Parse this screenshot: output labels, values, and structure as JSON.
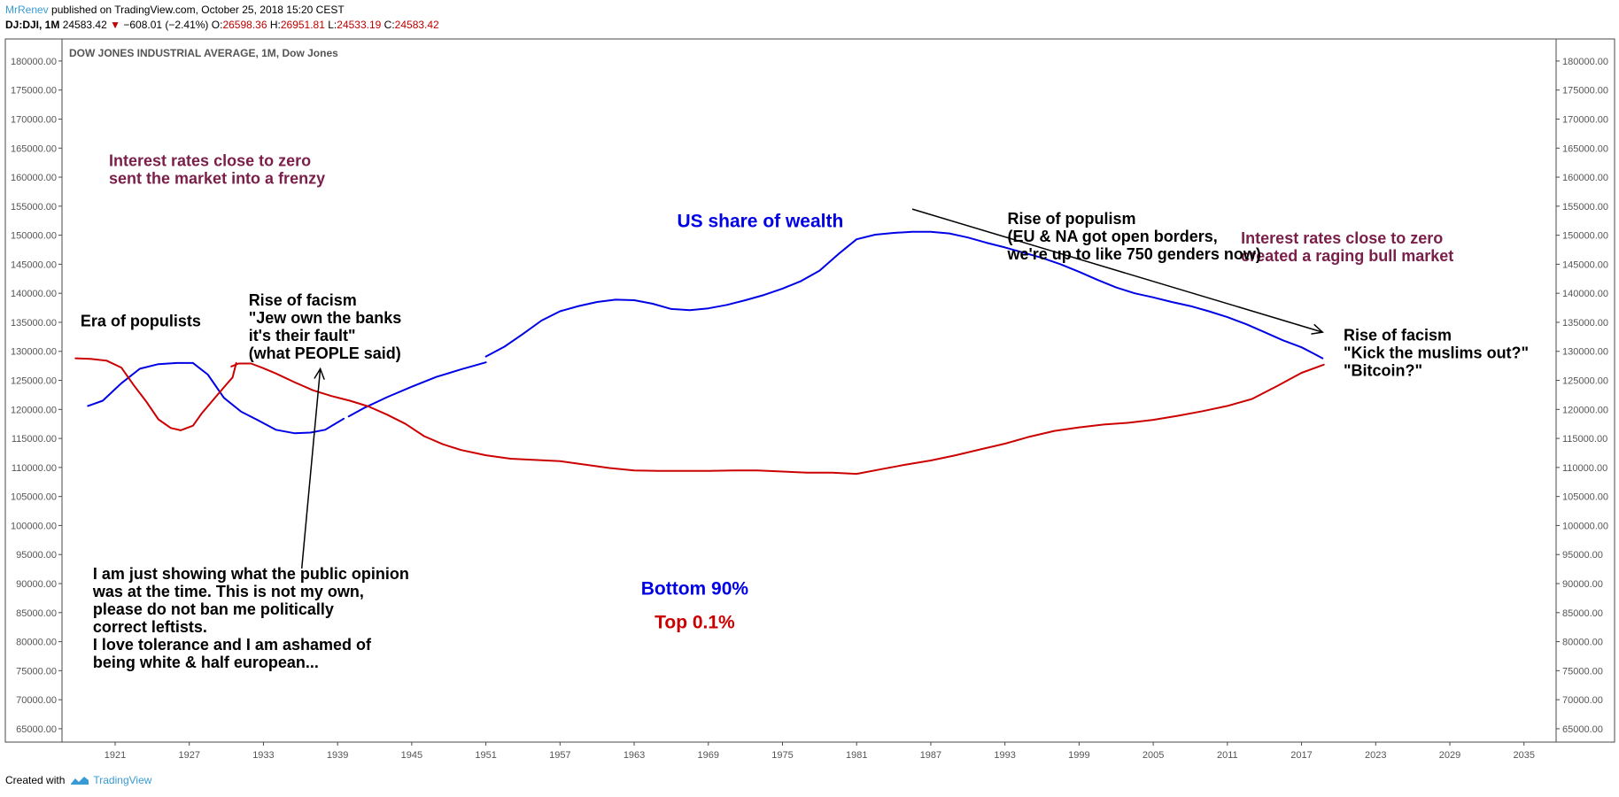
{
  "header": {
    "user": "MrRenev",
    "published": " published on TradingView.com, October 25, 2018 15:20 CEST",
    "symbol": "DJ:DJI, 1M",
    "last": "24583.42",
    "down_arrow": "▼",
    "change": "−608.01 (−2.41%)",
    "o_label": "O:",
    "o_value": "26598.36",
    "h_label": "H:",
    "h_value": "26951.81",
    "l_label": "L:",
    "l_value": "24533.19",
    "c_label": "C:",
    "c_value": "24583.42"
  },
  "footer": {
    "created_with": "Created with",
    "brand": "TradingView"
  },
  "colors": {
    "blue": "#0000e6",
    "red": "#cc0000",
    "purple": "#7a1f4a",
    "axis": "#555555",
    "brand": "#3a9bd4"
  },
  "chart_data": {
    "type": "line",
    "title": "DOW JONES INDUSTRIAL AVERAGE, 1M, Dow Jones",
    "xlim": [
      1916.7,
      2037.6
    ],
    "ylim": [
      62700,
      183800
    ],
    "x_ticks": [
      "1921",
      "1927",
      "1933",
      "1939",
      "1945",
      "1951",
      "1957",
      "1963",
      "1969",
      "1975",
      "1981",
      "1987",
      "1993",
      "1999",
      "2005",
      "2011",
      "2017",
      "2023",
      "2029",
      "2035"
    ],
    "y_ticks": [
      "180000.00",
      "175000.00",
      "170000.00",
      "165000.00",
      "160000.00",
      "155000.00",
      "150000.00",
      "145000.00",
      "140000.00",
      "135000.00",
      "130000.00",
      "125000.00",
      "120000.00",
      "115000.00",
      "110000.00",
      "105000.00",
      "100000.00",
      "95000.00",
      "90000.00",
      "85000.00",
      "80000.00",
      "75000.00",
      "70000.00",
      "65000.00"
    ],
    "series": [
      {
        "name": "Bottom 90%",
        "color": "#0000e6",
        "segments": [
          [
            [
              1918.8,
              120600
            ],
            [
              1920,
              121500
            ],
            [
              1921.5,
              124500
            ],
            [
              1923,
              127000
            ],
            [
              1924.5,
              127800
            ],
            [
              1926,
              128000
            ],
            [
              1927.3,
              128000
            ],
            [
              1928.5,
              126000
            ],
            [
              1929.8,
              122000
            ],
            [
              1931.2,
              119600
            ],
            [
              1932.5,
              118200
            ],
            [
              1934,
              116500
            ],
            [
              1935.5,
              115900
            ],
            [
              1936.8,
              116000
            ],
            [
              1938,
              116500
            ],
            [
              1939.5,
              118400
            ]
          ],
          [
            [
              1939.9,
              118800
            ],
            [
              1941.2,
              120300
            ],
            [
              1943,
              122100
            ],
            [
              1945,
              123900
            ],
            [
              1947,
              125600
            ],
            [
              1949,
              126900
            ],
            [
              1951,
              128100
            ]
          ],
          [
            [
              1951,
              129100
            ],
            [
              1952.5,
              130800
            ],
            [
              1954,
              133000
            ],
            [
              1955.5,
              135300
            ],
            [
              1957,
              136900
            ],
            [
              1958.5,
              137800
            ],
            [
              1960,
              138500
            ],
            [
              1961.5,
              138900
            ],
            [
              1963,
              138800
            ],
            [
              1964.5,
              138200
            ],
            [
              1966,
              137300
            ],
            [
              1967.5,
              137100
            ],
            [
              1969,
              137400
            ],
            [
              1970.5,
              138000
            ],
            [
              1972,
              138800
            ],
            [
              1973.5,
              139700
            ],
            [
              1975,
              140800
            ],
            [
              1976.5,
              142100
            ],
            [
              1978,
              143900
            ],
            [
              1979.5,
              146700
            ],
            [
              1981,
              149300
            ],
            [
              1982.5,
              150100
            ],
            [
              1984,
              150400
            ],
            [
              1985.5,
              150600
            ],
            [
              1987,
              150600
            ],
            [
              1988.5,
              150300
            ],
            [
              1990,
              149600
            ],
            [
              1991.5,
              148700
            ],
            [
              1993,
              147900
            ],
            [
              1994.5,
              147000
            ],
            [
              1996,
              146100
            ],
            [
              1997.5,
              145000
            ],
            [
              1999,
              143700
            ],
            [
              2000.5,
              142300
            ],
            [
              2002,
              141000
            ],
            [
              2003.5,
              140000
            ],
            [
              2005,
              139300
            ],
            [
              2006.5,
              138500
            ],
            [
              2008,
              137800
            ],
            [
              2009.5,
              136900
            ],
            [
              2011,
              135900
            ],
            [
              2012.5,
              134700
            ],
            [
              2014,
              133300
            ],
            [
              2015.5,
              131900
            ],
            [
              2017,
              130700
            ],
            [
              2018,
              129600
            ],
            [
              2018.7,
              128800
            ]
          ]
        ]
      },
      {
        "name": "Top 0.1%",
        "color": "#cc0000",
        "segments": [
          [
            [
              1917.8,
              128800
            ],
            [
              1919,
              128700
            ],
            [
              1920.3,
              128400
            ],
            [
              1921.5,
              127200
            ],
            [
              1922.5,
              124200
            ],
            [
              1923.5,
              121400
            ],
            [
              1924.5,
              118300
            ],
            [
              1925.5,
              116800
            ],
            [
              1926.3,
              116400
            ],
            [
              1927.3,
              117200
            ],
            [
              1928,
              119300
            ],
            [
              1929,
              121800
            ],
            [
              1930,
              124300
            ],
            [
              1930.5,
              125500
            ],
            [
              1930.8,
              128000
            ]
          ],
          [
            [
              1930.4,
              127400
            ],
            [
              1931,
              127900
            ],
            [
              1932,
              127900
            ],
            [
              1933,
              127100
            ],
            [
              1934,
              126200
            ],
            [
              1935.5,
              124700
            ],
            [
              1937,
              123300
            ],
            [
              1938.5,
              122300
            ],
            [
              1940,
              121500
            ],
            [
              1941.5,
              120500
            ],
            [
              1943,
              119100
            ],
            [
              1944.5,
              117500
            ],
            [
              1946,
              115400
            ],
            [
              1947.5,
              114000
            ],
            [
              1949,
              113000
            ],
            [
              1951,
              112100
            ],
            [
              1953,
              111500
            ],
            [
              1955,
              111300
            ],
            [
              1957,
              111100
            ],
            [
              1959,
              110500
            ],
            [
              1961,
              109900
            ],
            [
              1963,
              109500
            ],
            [
              1965,
              109400
            ],
            [
              1967,
              109400
            ],
            [
              1969,
              109400
            ],
            [
              1971,
              109500
            ],
            [
              1973,
              109500
            ],
            [
              1975,
              109300
            ],
            [
              1977,
              109100
            ],
            [
              1979,
              109100
            ],
            [
              1981,
              108900
            ],
            [
              1983,
              109700
            ],
            [
              1985,
              110500
            ],
            [
              1987,
              111200
            ],
            [
              1989,
              112100
            ],
            [
              1991,
              113100
            ],
            [
              1993,
              114100
            ],
            [
              1995,
              115300
            ],
            [
              1997,
              116300
            ],
            [
              1999,
              116900
            ],
            [
              2001,
              117400
            ],
            [
              2003,
              117700
            ],
            [
              2005,
              118200
            ],
            [
              2007,
              118900
            ],
            [
              2009,
              119700
            ],
            [
              2011,
              120600
            ],
            [
              2013,
              121800
            ],
            [
              2015,
              124000
            ],
            [
              2017,
              126300
            ],
            [
              2018.8,
              127700
            ]
          ]
        ]
      }
    ],
    "arrows": [
      {
        "from": [
          1985.5,
          154500
        ],
        "to": [
          2018.7,
          133300
        ]
      },
      {
        "from": [
          1936.1,
          92600
        ],
        "to": [
          1937.6,
          127000
        ]
      }
    ],
    "annotations": [
      {
        "lines": [
          "Interest rates close to zero",
          "sent the market into a frenzy"
        ],
        "x": 1920.5,
        "y": 161900,
        "color": "#7a1f4a"
      },
      {
        "lines": [
          "US share of wealth"
        ],
        "x": 1973.2,
        "y": 151400,
        "color": "#0000e6",
        "anchor": "middle",
        "size": "big"
      },
      {
        "lines": [
          "Interest rates close to zero",
          "created a raging bull market"
        ],
        "x": 2012.1,
        "y": 148600,
        "color": "#7a1f4a"
      },
      {
        "lines": [
          "Rise of populism",
          "(EU & NA got open borders,",
          "we're up to like 750 genders now)"
        ],
        "x": 1993.2,
        "y": 151900,
        "color": "#000000"
      },
      {
        "lines": [
          "Era of populists"
        ],
        "x": 1918.2,
        "y": 134300,
        "color": "#000000"
      },
      {
        "lines": [
          "Rise of facism",
          "\"Jew own the banks",
          "it's their fault\"",
          "(what PEOPLE said)"
        ],
        "x": 1931.8,
        "y": 137900,
        "color": "#000000"
      },
      {
        "lines": [
          "Rise of facism",
          "\"Kick the muslims out?\"",
          "\"Bitcoin?\""
        ],
        "x": 2020.4,
        "y": 131900,
        "color": "#000000"
      },
      {
        "lines": [
          "Bottom 90%"
        ],
        "x": 1967.9,
        "y": 88100,
        "color": "#0000e6",
        "anchor": "middle",
        "size": "big",
        "_hack": 0
      },
      {
        "lines": [
          "Top 0.1%"
        ],
        "x": 1967.9,
        "y": 82300,
        "color": "#cc0000",
        "anchor": "middle",
        "size": "big",
        "_hack": 0
      },
      {
        "lines": [
          "I am just showing what the public opinion",
          "was at the time. This is not my own,",
          "please do not ban me politically",
          "correct leftists.",
          "I love tolerance and I am ashamed of",
          "being white & half european..."
        ],
        "x": 1919.2,
        "y": 90800,
        "color": "#000000"
      }
    ]
  }
}
